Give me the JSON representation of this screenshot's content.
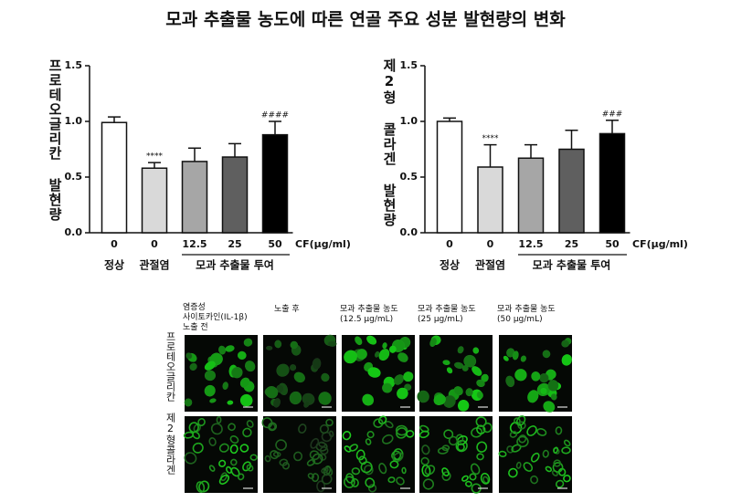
{
  "title": "모과 추출물 농도에 따른 연골 주요 성분 발현량의 변화",
  "chart_data": [
    {
      "type": "bar",
      "ylabel": "프로테오글리칸 발현량",
      "xlabel": "CF(μg/ml)",
      "categories": [
        "0",
        "0",
        "12.5",
        "25",
        "50"
      ],
      "groups": [
        "정상",
        "관절염",
        "모과 추출물 투여"
      ],
      "group_sizes": [
        1,
        1,
        3
      ],
      "values": [
        0.99,
        0.58,
        0.64,
        0.68,
        0.88
      ],
      "errors": [
        0.05,
        0.05,
        0.12,
        0.12,
        0.12
      ],
      "significance": [
        null,
        "****",
        null,
        null,
        "####"
      ],
      "colors": [
        "#ffffff",
        "#d9d9d9",
        "#a6a6a6",
        "#5f5f5f",
        "#000000"
      ],
      "ylim": [
        0,
        1.5
      ],
      "yticks": [
        {
          "value": 0,
          "label": "0.0"
        },
        {
          "value": 0.5,
          "label": "0.5"
        },
        {
          "value": 1,
          "label": "1.0"
        },
        {
          "value": 1.5,
          "label": "1.5"
        }
      ]
    },
    {
      "type": "bar",
      "ylabel": "제2형 콜라겐 발현량",
      "xlabel": "CF(μg/ml)",
      "categories": [
        "0",
        "0",
        "12.5",
        "25",
        "50"
      ],
      "groups": [
        "정상",
        "관절염",
        "모과 추출물 투여"
      ],
      "group_sizes": [
        1,
        1,
        3
      ],
      "values": [
        1.0,
        0.59,
        0.67,
        0.75,
        0.89
      ],
      "errors": [
        0.03,
        0.2,
        0.12,
        0.17,
        0.12
      ],
      "significance": [
        null,
        "****",
        null,
        null,
        "###"
      ],
      "colors": [
        "#ffffff",
        "#d9d9d9",
        "#a6a6a6",
        "#5f5f5f",
        "#000000"
      ],
      "ylim": [
        0,
        1.5
      ],
      "yticks": [
        {
          "value": 0,
          "label": "0.0"
        },
        {
          "value": 0.5,
          "label": "0.5"
        },
        {
          "value": 1,
          "label": "1.0"
        },
        {
          "value": 1.5,
          "label": "1.5"
        }
      ]
    }
  ],
  "image_panel": {
    "columns": [
      [
        "염증성",
        "사이토카인(IL-1β)",
        "노출 전"
      ],
      [
        "노출 후"
      ],
      [
        "모과 추출물 농도",
        "(12.5 μg/mL)"
      ],
      [
        "모과 추출물 농도",
        "(25 μg/mL)"
      ],
      [
        "모과 추출물 농도",
        "(50 μg/mL)"
      ]
    ],
    "rows": [
      "프로테오글리칸",
      "제2형콜라겐"
    ]
  }
}
